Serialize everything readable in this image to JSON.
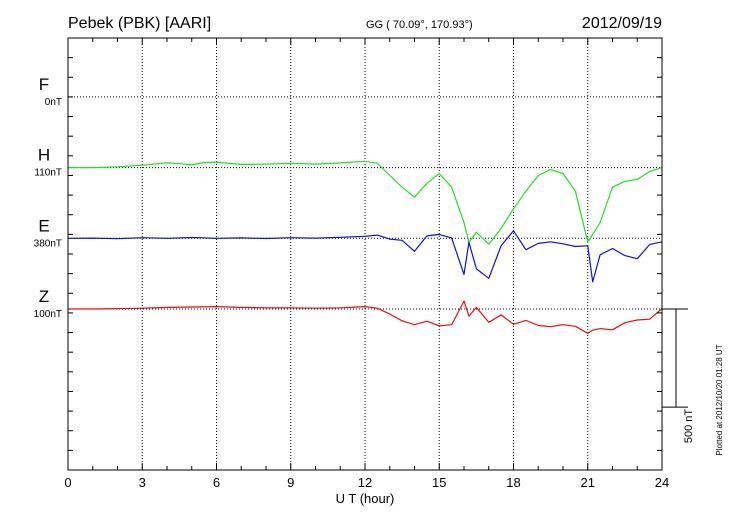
{
  "header": {
    "station": "Pebek (PBK)  [AARI]",
    "coords": "GG ( 70.09°, 170.93°)",
    "date": "2012/09/19"
  },
  "footer": {
    "plotted": "Plotted at 2012/10/20 01:28 UT"
  },
  "scale_bar": {
    "label": "500 nT",
    "value_nT": 500
  },
  "colors": {
    "F": "#f0a000",
    "H": "#22e022",
    "E": "#1010d0",
    "Z": "#e01010"
  },
  "chart_data": {
    "type": "line",
    "title": "Pebek (PBK)  [AARI]",
    "xlabel": "U T (hour)",
    "ylabel": "",
    "xlim": [
      0,
      24
    ],
    "xticks": [
      0,
      3,
      6,
      9,
      12,
      15,
      18,
      21,
      24
    ],
    "xtick_labels": [
      "0",
      "3",
      "6",
      "9",
      "12",
      "15",
      "18",
      "21",
      "24"
    ],
    "ylim_nT": [
      -900,
      1300
    ],
    "grid": true,
    "series": [
      {
        "name": "F",
        "offset_label": "0nT",
        "baseline_nT": 1000,
        "x": [],
        "values": []
      },
      {
        "name": "H",
        "offset_label": "110nT",
        "baseline_nT": 640,
        "x": [
          0,
          1,
          2,
          3,
          4,
          4.5,
          5,
          5.5,
          6,
          7,
          8,
          9,
          10,
          11,
          12,
          12.5,
          13,
          13.5,
          14,
          14.5,
          15,
          15.5,
          16,
          16.2,
          16.5,
          17,
          17.5,
          18,
          18.5,
          19,
          19.5,
          20,
          20.5,
          21,
          21.5,
          22,
          22.5,
          23,
          23.5,
          24
        ],
        "values": [
          640,
          640,
          644,
          652,
          664,
          660,
          654,
          666,
          668,
          656,
          658,
          662,
          658,
          664,
          672,
          662,
          600,
          540,
          490,
          560,
          610,
          540,
          360,
          260,
          310,
          250,
          330,
          430,
          520,
          600,
          630,
          610,
          520,
          260,
          360,
          540,
          570,
          580,
          620,
          640
        ]
      },
      {
        "name": "E",
        "offset_label": "380nT",
        "baseline_nT": 280,
        "x": [
          0,
          1,
          2,
          3,
          4,
          5,
          6,
          7,
          8,
          9,
          10,
          11,
          12,
          12.5,
          13,
          13.5,
          14,
          14.5,
          15,
          15.5,
          16,
          16.2,
          16.5,
          17,
          17.5,
          18,
          18.5,
          19,
          19.5,
          20,
          20.5,
          21,
          21.2,
          21.5,
          22,
          22.5,
          23,
          23.5,
          24
        ],
        "values": [
          280,
          281,
          278,
          283,
          280,
          284,
          280,
          282,
          279,
          283,
          281,
          285,
          290,
          296,
          276,
          270,
          214,
          292,
          300,
          282,
          96,
          260,
          124,
          76,
          242,
          318,
          222,
          254,
          262,
          252,
          238,
          242,
          58,
          196,
          228,
          192,
          176,
          248,
          262
        ]
      },
      {
        "name": "Z",
        "offset_label": "100nT",
        "baseline_nT": -80,
        "x": [
          0,
          1,
          2,
          3,
          4,
          5,
          6,
          7,
          8,
          9,
          10,
          11,
          12,
          12.5,
          13,
          13.5,
          14,
          14.5,
          15,
          15.5,
          16,
          16.2,
          16.5,
          17,
          17.5,
          18,
          18.5,
          19,
          19.5,
          20,
          20.5,
          21,
          21.2,
          21.5,
          22,
          22.5,
          23,
          23.5,
          24
        ],
        "values": [
          -80,
          -80,
          -78,
          -76,
          -72,
          -70,
          -68,
          -72,
          -74,
          -74,
          -76,
          -74,
          -68,
          -76,
          -106,
          -140,
          -160,
          -142,
          -166,
          -160,
          -40,
          -116,
          -72,
          -148,
          -110,
          -158,
          -138,
          -164,
          -170,
          -160,
          -168,
          -204,
          -188,
          -180,
          -186,
          -150,
          -136,
          -132,
          -78
        ]
      }
    ]
  }
}
